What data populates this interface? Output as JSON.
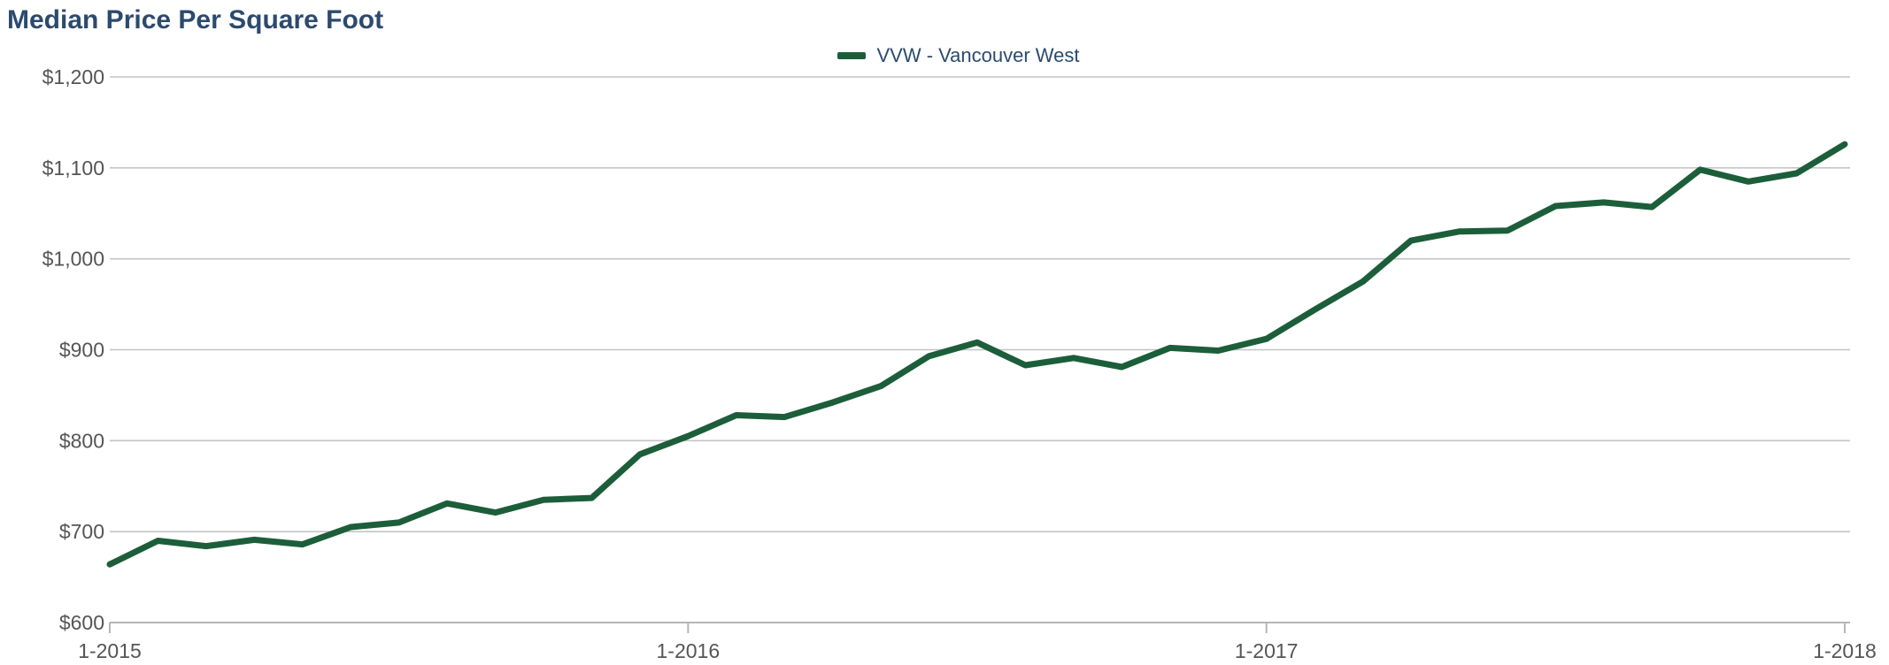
{
  "chart_data": {
    "type": "line",
    "title": "Median Price Per Square Foot",
    "xlabel": "",
    "ylabel": "",
    "x_range": [
      "1-2015",
      "1-2018"
    ],
    "ylim": [
      600,
      1200
    ],
    "y_ticks": [
      {
        "value": 600,
        "label": "$600"
      },
      {
        "value": 700,
        "label": "$700"
      },
      {
        "value": 800,
        "label": "$800"
      },
      {
        "value": 900,
        "label": "$900"
      },
      {
        "value": 1000,
        "label": "$1,000"
      },
      {
        "value": 1100,
        "label": "$1,100"
      },
      {
        "value": 1200,
        "label": "$1,200"
      }
    ],
    "x_ticks": [
      "1-2015",
      "1-2016",
      "1-2017",
      "1-2018"
    ],
    "grid": true,
    "legend_position": "top-center",
    "series": [
      {
        "name": "VVW - Vancouver West",
        "color": "#1c5e3a",
        "x": [
          "1-2015",
          "2-2015",
          "3-2015",
          "4-2015",
          "5-2015",
          "6-2015",
          "7-2015",
          "8-2015",
          "9-2015",
          "10-2015",
          "11-2015",
          "12-2015",
          "1-2016",
          "2-2016",
          "3-2016",
          "4-2016",
          "5-2016",
          "6-2016",
          "7-2016",
          "8-2016",
          "9-2016",
          "10-2016",
          "11-2016",
          "12-2016",
          "1-2017",
          "2-2017",
          "3-2017",
          "4-2017",
          "5-2017",
          "6-2017",
          "7-2017",
          "8-2017",
          "9-2017",
          "10-2017",
          "11-2017",
          "12-2017",
          "1-2018"
        ],
        "values": [
          664,
          690,
          684,
          691,
          686,
          705,
          710,
          731,
          721,
          735,
          737,
          785,
          805,
          828,
          826,
          842,
          860,
          893,
          908,
          883,
          891,
          881,
          902,
          899,
          912,
          944,
          975,
          1020,
          1030,
          1031,
          1058,
          1062,
          1057,
          1098,
          1085,
          1094,
          1126
        ]
      }
    ]
  },
  "accent_color": "#1c5e3a",
  "title_color": "#2c4a6e"
}
